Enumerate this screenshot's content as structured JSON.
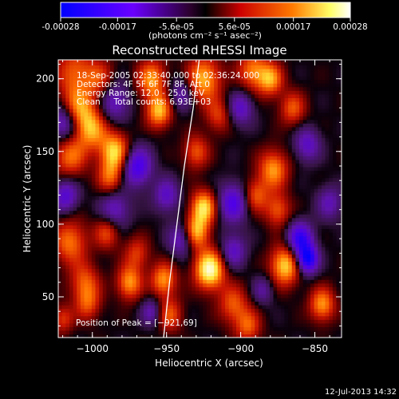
{
  "colorbar": {
    "tick_labels": [
      "-0.00028",
      "-0.00017",
      "-5.6e-05",
      "5.6e-05",
      "0.00017",
      "0.00028"
    ],
    "tick_values": [
      -0.00028,
      -0.00017,
      -5.6e-05,
      5.6e-05,
      0.00017,
      0.00028
    ],
    "range": [
      -0.00028,
      0.00028
    ],
    "unit_label": "(photons cm⁻² s⁻¹ asec⁻²)",
    "colors": [
      "#0000ff",
      "#6a00ff",
      "#2a002a",
      "#000000",
      "#cc0000",
      "#ff7a00",
      "#ffff99",
      "#ffffff"
    ]
  },
  "chart_data": {
    "type": "heatmap",
    "title": "Reconstructed RHESSI Image",
    "xlabel": "Heliocentric X (arcsec)",
    "ylabel": "Heliocentric Y (arcsec)",
    "xlim": [
      -1023,
      -832
    ],
    "ylim": [
      22,
      213
    ],
    "xticks": [
      -1000,
      -950,
      -900,
      -850
    ],
    "xtick_labels": [
      "−1000",
      "−950",
      "−900",
      "−850"
    ],
    "yticks": [
      50,
      100,
      150,
      200
    ],
    "ytick_labels": [
      "50",
      "100",
      "150",
      "200"
    ],
    "info_lines": [
      "18-Sep-2005 02:33:40.000 to 02:36:24.000",
      "Detectors: 4F 5F 6F 7F 8F, Att 0",
      "Energy Range: 12.0 - 25.0 keV",
      "Clean     Total counts: 6.93E+03"
    ],
    "peak_label": "Position of Peak = [−921,69]",
    "peak": [
      -921,
      69
    ],
    "limb_curve": [
      [
        -952,
        22
      ],
      [
        -948,
        60
      ],
      [
        -943,
        100
      ],
      [
        -938,
        140
      ],
      [
        -932,
        180
      ],
      [
        -928,
        213
      ]
    ],
    "grid": false,
    "blobs": [
      {
        "x": -1012,
        "y": 205,
        "a": 0.6,
        "s": 9
      },
      {
        "x": -1010,
        "y": 178,
        "a": 0.9,
        "s": 8
      },
      {
        "x": -1000,
        "y": 165,
        "a": 0.7,
        "s": 7
      },
      {
        "x": -1015,
        "y": 148,
        "a": 0.7,
        "s": 8
      },
      {
        "x": -995,
        "y": 200,
        "a": 0.5,
        "s": 7
      },
      {
        "x": -985,
        "y": 150,
        "a": 1.0,
        "s": 7
      },
      {
        "x": -988,
        "y": 132,
        "a": 0.6,
        "s": 6
      },
      {
        "x": -1015,
        "y": 88,
        "a": 0.7,
        "s": 8
      },
      {
        "x": -1005,
        "y": 60,
        "a": 0.6,
        "s": 7
      },
      {
        "x": -990,
        "y": 95,
        "a": 0.6,
        "s": 6
      },
      {
        "x": -975,
        "y": 60,
        "a": 0.8,
        "s": 6
      },
      {
        "x": -970,
        "y": 80,
        "a": 0.5,
        "s": 6
      },
      {
        "x": -960,
        "y": 200,
        "a": 0.8,
        "s": 7
      },
      {
        "x": -955,
        "y": 178,
        "a": 0.9,
        "s": 6
      },
      {
        "x": -952,
        "y": 62,
        "a": 0.8,
        "s": 6
      },
      {
        "x": -948,
        "y": 38,
        "a": 0.6,
        "s": 6
      },
      {
        "x": -925,
        "y": 200,
        "a": 0.9,
        "s": 8
      },
      {
        "x": -915,
        "y": 175,
        "a": 0.5,
        "s": 6
      },
      {
        "x": -930,
        "y": 150,
        "a": 0.6,
        "s": 6
      },
      {
        "x": -925,
        "y": 112,
        "a": 1.0,
        "s": 6
      },
      {
        "x": -930,
        "y": 95,
        "a": 0.9,
        "s": 6
      },
      {
        "x": -921,
        "y": 69,
        "a": 1.25,
        "s": 7
      },
      {
        "x": -905,
        "y": 45,
        "a": 0.6,
        "s": 7
      },
      {
        "x": -892,
        "y": 206,
        "a": 0.7,
        "s": 7
      },
      {
        "x": -880,
        "y": 200,
        "a": 0.8,
        "s": 6
      },
      {
        "x": -865,
        "y": 180,
        "a": 0.6,
        "s": 6
      },
      {
        "x": -878,
        "y": 138,
        "a": 0.8,
        "s": 7
      },
      {
        "x": -890,
        "y": 120,
        "a": 0.6,
        "s": 6
      },
      {
        "x": -875,
        "y": 110,
        "a": 0.6,
        "s": 6
      },
      {
        "x": -870,
        "y": 72,
        "a": 1.0,
        "s": 7
      },
      {
        "x": -845,
        "y": 45,
        "a": 0.8,
        "s": 6
      },
      {
        "x": -895,
        "y": 30,
        "a": 0.6,
        "s": 6
      },
      {
        "x": -1003,
        "y": 45,
        "a": 0.5,
        "s": 6
      },
      {
        "x": -1020,
        "y": 35,
        "a": 0.5,
        "s": 5
      },
      {
        "x": -1018,
        "y": 170,
        "a": -0.9,
        "s": 7
      },
      {
        "x": -985,
        "y": 185,
        "a": -0.6,
        "s": 7
      },
      {
        "x": -970,
        "y": 140,
        "a": -0.9,
        "s": 7
      },
      {
        "x": -940,
        "y": 190,
        "a": -0.5,
        "s": 6
      },
      {
        "x": -940,
        "y": 90,
        "a": -0.6,
        "s": 6
      },
      {
        "x": -905,
        "y": 115,
        "a": -0.8,
        "s": 7
      },
      {
        "x": -905,
        "y": 82,
        "a": -0.6,
        "s": 6
      },
      {
        "x": -860,
        "y": 90,
        "a": -1.0,
        "s": 6
      },
      {
        "x": -855,
        "y": 76,
        "a": -1.2,
        "s": 5
      },
      {
        "x": -855,
        "y": 155,
        "a": -0.6,
        "s": 6
      },
      {
        "x": -840,
        "y": 115,
        "a": -0.5,
        "s": 6
      },
      {
        "x": -900,
        "y": 180,
        "a": -0.6,
        "s": 6
      },
      {
        "x": -950,
        "y": 120,
        "a": -0.6,
        "s": 6
      },
      {
        "x": -985,
        "y": 110,
        "a": -0.6,
        "s": 7
      },
      {
        "x": -1018,
        "y": 120,
        "a": -0.7,
        "s": 6
      },
      {
        "x": -960,
        "y": 40,
        "a": -0.5,
        "s": 5
      },
      {
        "x": -885,
        "y": 55,
        "a": -0.4,
        "s": 5
      }
    ]
  },
  "footer": {
    "timestamp": "12-Jul-2013 14:32"
  }
}
